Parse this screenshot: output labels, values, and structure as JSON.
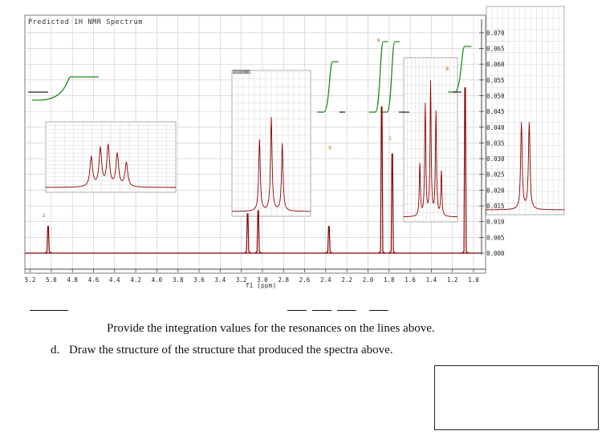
{
  "chart_data": {
    "type": "line",
    "title": "Predicted 1H NMR Spectrum",
    "xlabel": "f1 (ppm)",
    "ylabel": "",
    "xlim": [
      5.25,
      1.0
    ],
    "ylim": [
      0.0,
      0.072
    ],
    "x_ticks": [
      "5.2",
      "5.0",
      "4.8",
      "4.6",
      "4.4",
      "4.2",
      "4.0",
      "3.8",
      "3.6",
      "3.4",
      "3.2",
      "3.0",
      "2.8",
      "2.6",
      "2.4",
      "2.2",
      "2.0",
      "1.8",
      "1.6",
      "1.4",
      "1.2",
      "1.0"
    ],
    "y_ticks": [
      "0.000",
      "0.005",
      "0.010",
      "0.015",
      "0.020",
      "0.025",
      "0.030",
      "0.035",
      "0.040",
      "0.045",
      "0.050",
      "0.055",
      "0.060",
      "0.065",
      "0.070"
    ],
    "peak_labels": [
      {
        "text": "2",
        "ppm": 5.07,
        "y": 0.0115
      },
      {
        "text": "6",
        "ppm": 2.36,
        "y": 0.033
      },
      {
        "text": "9",
        "ppm": 1.9,
        "y": 0.067
      },
      {
        "text": "1",
        "ppm": 1.79,
        "y": 0.036
      },
      {
        "text": "8",
        "ppm": 1.25,
        "y": 0.058
      }
    ],
    "series": [
      {
        "values": [
          {
            "ppm": 5.03,
            "height": 0.0085
          },
          {
            "ppm": 3.14,
            "height": 0.0125
          },
          {
            "ppm": 3.04,
            "height": 0.0135
          },
          {
            "ppm": 2.37,
            "height": 0.0085
          },
          {
            "ppm": 1.87,
            "height": 0.0465
          },
          {
            "ppm": 1.77,
            "height": 0.0315
          },
          {
            "ppm": 1.08,
            "height": 0.0525
          }
        ]
      }
    ],
    "integral_curves": [
      {
        "from_ppm": 5.12,
        "to_ppm": 4.55
      },
      {
        "from_ppm": 2.42,
        "to_ppm": 2.28
      },
      {
        "from_ppm": 1.93,
        "to_ppm": 1.81
      },
      {
        "from_ppm": 1.82,
        "to_ppm": 1.7
      },
      {
        "from_ppm": 1.18,
        "to_ppm": 1.02
      }
    ],
    "inset_labels": [
      "PARTIAL 1H NMR"
    ],
    "grid": true
  },
  "question": {
    "integration_prompt": "Provide the integration values for the resonances on the lines above.",
    "part_d_letter": "d.",
    "part_d_text": "Draw the structure of the structure that produced the spectra above."
  },
  "colors": {
    "spectrum": "#8b0000",
    "integral": "#1e8c1e",
    "grid": "#c8c8c8",
    "frame": "#7a7a7a"
  }
}
